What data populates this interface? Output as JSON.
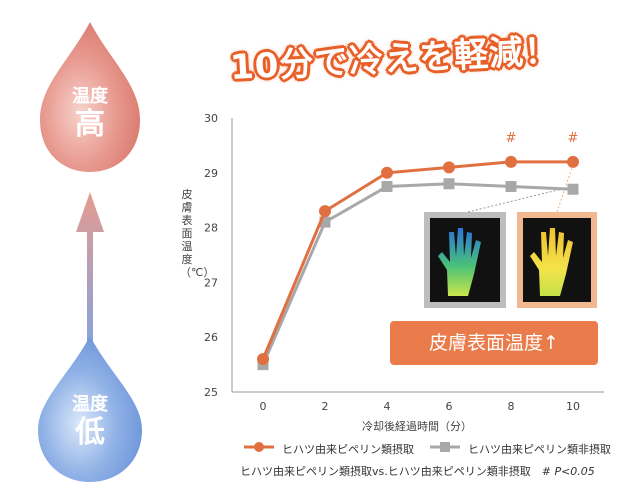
{
  "headline": "10分で冷えを軽減！",
  "indicator": {
    "high": {
      "line1": "温度",
      "line2": "高"
    },
    "low": {
      "line1": "温度",
      "line2": "低"
    }
  },
  "callout": "皮膚表面温度↑",
  "legend": {
    "taken": "ヒハツ由来ピペリン類摂取",
    "not_taken": "ヒハツ由来ピペリン類非摂取"
  },
  "footnote": {
    "text": "ヒハツ由来ピペリン類摂取vs.ヒハツ由来ピペリン類非摂取　#",
    "p": "P<0.05"
  },
  "colors": {
    "accent": "#e8612a",
    "series_taken": "#e07040",
    "series_not_taken": "#a8a8a8"
  },
  "chart_data": {
    "type": "line",
    "xlabel": "冷却後経過時間（分）",
    "ylabel": "皮膚表面温度（℃）",
    "x": [
      0,
      2,
      4,
      6,
      8,
      10
    ],
    "xticks": [
      "0",
      "2",
      "4",
      "6",
      "8",
      "10"
    ],
    "yticks": [
      "25",
      "26",
      "27",
      "28",
      "29",
      "30"
    ],
    "ylim": [
      25,
      30
    ],
    "xlim": [
      -1,
      11
    ],
    "series": [
      {
        "name": "ヒハツ由来ピペリン類摂取",
        "values": [
          25.6,
          28.3,
          29.0,
          29.1,
          29.2,
          29.2
        ]
      },
      {
        "name": "ヒハツ由来ピペリン類非摂取",
        "values": [
          25.5,
          28.1,
          28.75,
          28.8,
          28.75,
          28.7
        ]
      }
    ],
    "significance_marks": [
      {
        "x": 8,
        "label": "#"
      },
      {
        "x": 10,
        "label": "#"
      }
    ]
  }
}
